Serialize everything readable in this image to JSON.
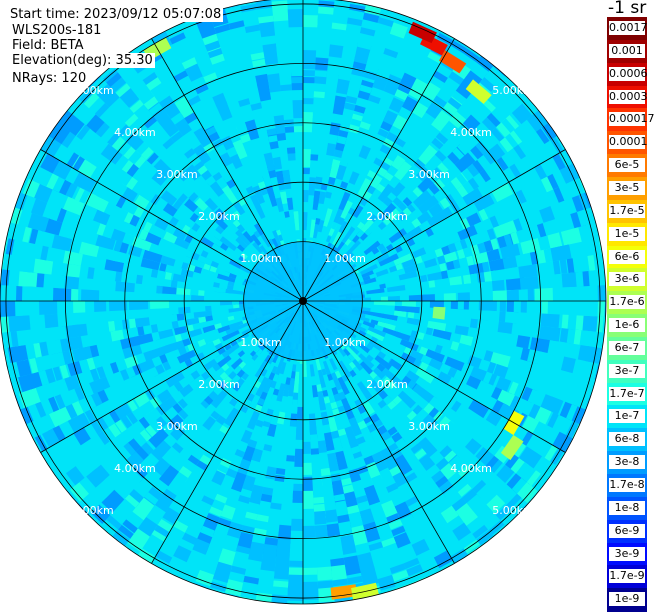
{
  "header": {
    "start_time": "Start time: 2023/09/12 05:07:08",
    "device": "WLS200s-181",
    "field": "Field: BETA",
    "elevation": "Elevation(deg): 35.30",
    "nrays": "NRays: 120"
  },
  "colorbar": {
    "title": "-1 sr",
    "tick_labels": [
      "0.0017",
      "0.001",
      "0.0006",
      "0.0003",
      "0.00017",
      "0.0001",
      "6e-5",
      "3e-5",
      "1.7e-5",
      "1e-5",
      "6e-6",
      "3e-6",
      "1.7e-6",
      "1e-6",
      "6e-7",
      "3e-7",
      "1.7e-7",
      "1e-7",
      "6e-8",
      "3e-8",
      "1.7e-8",
      "1e-8",
      "6e-9",
      "3e-9",
      "1.7e-9",
      "1e-9"
    ],
    "colors": [
      "#7f0000",
      "#a00000",
      "#c80000",
      "#ee0f00",
      "#ff3300",
      "#ff5500",
      "#ff7a00",
      "#ff9f00",
      "#ffc300",
      "#ffe700",
      "#f4ff0a",
      "#d0ff2e",
      "#acff52",
      "#88ff76",
      "#64ff9b",
      "#40ffbf",
      "#1cffe3",
      "#00e4f8",
      "#00c0ff",
      "#009cff",
      "#0078ff",
      "#0054ff",
      "#0030ff",
      "#000cff",
      "#0000d8",
      "#00008f"
    ]
  },
  "chart_data": {
    "type": "heatmap",
    "projection": "polar",
    "field": "BETA",
    "units": "sr^-1",
    "scale": "log",
    "value_range": [
      1e-09,
      0.0017
    ],
    "ranges_km": [
      1.0,
      2.0,
      3.0,
      4.0,
      5.0
    ],
    "range_labels": [
      "1.00km",
      "2.00km",
      "3.00km",
      "4.00km",
      "5.00km"
    ],
    "max_range_km": 5.1,
    "nrays": 120,
    "radial_lines_deg": [
      0,
      30,
      60,
      90,
      120,
      150,
      180,
      210,
      240,
      270,
      300,
      330
    ],
    "typical_value": 1e-07,
    "hotspots": [
      {
        "azimuth_deg": 27,
        "range_km": 4.85,
        "value": 0.0003
      },
      {
        "azimuth_deg": 24,
        "range_km": 4.95,
        "value": 0.0006
      },
      {
        "azimuth_deg": 32,
        "range_km": 4.75,
        "value": 0.0001
      },
      {
        "azimuth_deg": 40,
        "range_km": 4.6,
        "value": 3e-06
      },
      {
        "azimuth_deg": 120,
        "range_km": 4.1,
        "value": 6e-06
      },
      {
        "azimuth_deg": 125,
        "range_km": 4.3,
        "value": 1.7e-06
      },
      {
        "azimuth_deg": 172,
        "range_km": 4.95,
        "value": 3e-05
      },
      {
        "azimuth_deg": 168,
        "range_km": 5.0,
        "value": 3e-06
      },
      {
        "azimuth_deg": 330,
        "range_km": 4.9,
        "value": 1.7e-06
      },
      {
        "azimuth_deg": 95,
        "range_km": 2.3,
        "value": 1e-06
      }
    ]
  }
}
